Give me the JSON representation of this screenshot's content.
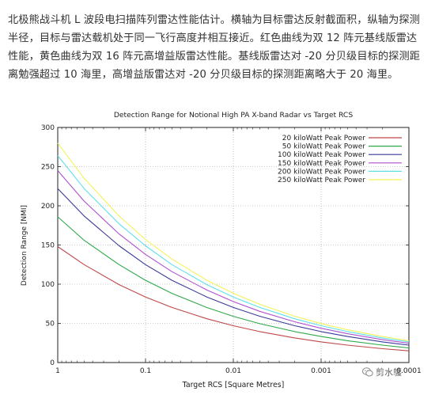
{
  "article": {
    "paragraph": "北极熊战斗机 L 波段电扫描阵列雷达性能估计。横轴为目标雷达反射截面积，纵轴为探测半径，目标与雷达载机处于同一飞行高度并相互接近。红色曲线为双 12 阵元基线版雷达性能，黄色曲线为双 16 阵元高增益版雷达性能。基线版雷达对 -20 分贝级目标的探测距离勉强超过 10 海里，高增益版雷达对 -20 分贝级目标的探测距离略大于 20 海里。"
  },
  "watermark": {
    "text": "剪水鹱",
    "icon": "wechat-icon"
  },
  "chart_data": {
    "type": "line",
    "title": "Detection Range for Notional High PA X-band Radar vs Target RCS",
    "xlabel": "Target RCS [Square Metres]",
    "ylabel": "Detection Range [NMI]",
    "x_scale": "log",
    "x_reversed": true,
    "xlim": [
      1,
      0.0001
    ],
    "ylim": [
      0,
      300
    ],
    "x_ticks": [
      "1",
      "0.1",
      "0.01",
      "0.001",
      "0.0001"
    ],
    "x_tick_values": [
      1,
      0.1,
      0.01,
      0.001,
      0.0001
    ],
    "y_ticks": [
      0,
      50,
      100,
      150,
      200,
      250,
      300
    ],
    "grid": true,
    "legend_position": "top-right",
    "x": [
      1,
      0.5,
      0.2,
      0.1,
      0.05,
      0.02,
      0.01,
      0.005,
      0.002,
      0.001,
      0.0005,
      0.0002,
      0.0001
    ],
    "series": [
      {
        "name": "20 kiloWatt Peak Power",
        "color": "#c04848",
        "values": [
          148,
          125,
          99.4,
          83.6,
          70.3,
          55.9,
          47,
          39.5,
          31.4,
          26.4,
          22.2,
          17.7,
          14.9
        ]
      },
      {
        "name": "50 kiloWatt Peak Power",
        "color": "#2ea84a",
        "values": [
          186,
          156,
          125,
          105,
          88.3,
          70.2,
          59,
          49.6,
          39.5,
          33.2,
          27.9,
          22.2,
          18.6
        ]
      },
      {
        "name": "100 kiloWatt Peak Power",
        "color": "#3a3a9a",
        "values": [
          222,
          187,
          149,
          125,
          105,
          83.6,
          70.3,
          59.1,
          47,
          39.5,
          33.2,
          26.4,
          22.2
        ]
      },
      {
        "name": "150 kiloWatt Peak Power",
        "color": "#b050d0",
        "values": [
          245,
          206,
          164,
          138,
          116,
          92.5,
          77.8,
          65.4,
          52,
          43.7,
          36.8,
          29.2,
          24.6
        ]
      },
      {
        "name": "200 kiloWatt Peak Power",
        "color": "#5ee0e8",
        "values": [
          264,
          222,
          177,
          149,
          125,
          99.4,
          83.6,
          70.3,
          55.9,
          47,
          39.5,
          31.4,
          26.4
        ]
      },
      {
        "name": "250 kiloWatt Peak Power",
        "color": "#f2f25a",
        "values": [
          280,
          235,
          187,
          157,
          132,
          105,
          88.4,
          74.3,
          59.1,
          49.7,
          41.8,
          33.2,
          27.9
        ]
      }
    ]
  }
}
